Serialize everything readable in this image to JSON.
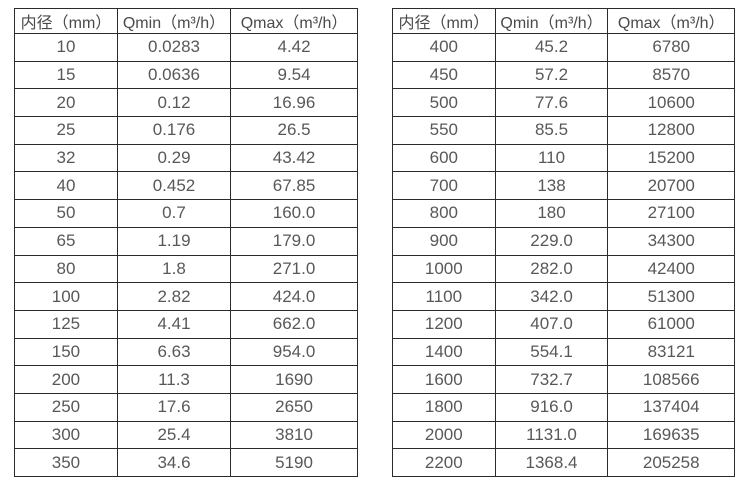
{
  "colors": {
    "background": "#ffffff",
    "table_border": "#2b2b2b",
    "header_text": "#4a4a4a",
    "cell_text": "#585858"
  },
  "chart_data": [
    {
      "type": "table",
      "columns": [
        "内径（mm）",
        "Qmin（m³/h）",
        "Qmax（m³/h）"
      ],
      "rows": [
        [
          "10",
          "0.0283",
          "4.42"
        ],
        [
          "15",
          "0.0636",
          "9.54"
        ],
        [
          "20",
          "0.12",
          "16.96"
        ],
        [
          "25",
          "0.176",
          "26.5"
        ],
        [
          "32",
          "0.29",
          "43.42"
        ],
        [
          "40",
          "0.452",
          "67.85"
        ],
        [
          "50",
          "0.7",
          "160.0"
        ],
        [
          "65",
          "1.19",
          "179.0"
        ],
        [
          "80",
          "1.8",
          "271.0"
        ],
        [
          "100",
          "2.82",
          "424.0"
        ],
        [
          "125",
          "4.41",
          "662.0"
        ],
        [
          "150",
          "6.63",
          "954.0"
        ],
        [
          "200",
          "11.3",
          "1690"
        ],
        [
          "250",
          "17.6",
          "2650"
        ],
        [
          "300",
          "25.4",
          "3810"
        ],
        [
          "350",
          "34.6",
          "5190"
        ]
      ]
    },
    {
      "type": "table",
      "columns": [
        "内径（mm）",
        "Qmin（m³/h）",
        "Qmax（m³/h）"
      ],
      "rows": [
        [
          "400",
          "45.2",
          "6780"
        ],
        [
          "450",
          "57.2",
          "8570"
        ],
        [
          "500",
          "77.6",
          "10600"
        ],
        [
          "550",
          "85.5",
          "12800"
        ],
        [
          "600",
          "110",
          "15200"
        ],
        [
          "700",
          "138",
          "20700"
        ],
        [
          "800",
          "180",
          "27100"
        ],
        [
          "900",
          "229.0",
          "34300"
        ],
        [
          "1000",
          "282.0",
          "42400"
        ],
        [
          "1100",
          "342.0",
          "51300"
        ],
        [
          "1200",
          "407.0",
          "61000"
        ],
        [
          "1400",
          "554.1",
          "83121"
        ],
        [
          "1600",
          "732.7",
          "108566"
        ],
        [
          "1800",
          "916.0",
          "137404"
        ],
        [
          "2000",
          "1131.0",
          "169635"
        ],
        [
          "2200",
          "1368.4",
          "205258"
        ]
      ]
    }
  ]
}
